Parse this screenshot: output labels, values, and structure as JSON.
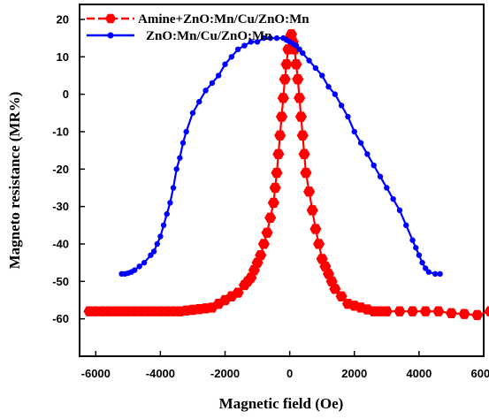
{
  "chart_data": {
    "type": "line",
    "title": "",
    "xlabel": "Magnetic field (Oe)",
    "ylabel": "Magneto resistance (MR%)",
    "xlim": [
      -6500,
      6000
    ],
    "ylim": [
      -70,
      24
    ],
    "x_ticks": [
      -6000,
      -4000,
      -2000,
      0,
      2000,
      4000,
      6000
    ],
    "x_tick_labels": [
      "-6000",
      "-4000",
      "-2000",
      "0",
      "2000",
      "4000",
      "6000"
    ],
    "y_ticks": [
      20,
      10,
      0,
      -10,
      -20,
      -30,
      -40,
      -50,
      -60
    ],
    "y_tick_labels": [
      "20",
      "10",
      "0",
      "-10",
      "-20",
      "-30",
      "-40",
      "-50",
      "-60"
    ],
    "grid": false,
    "legend_position": "top-left",
    "series": [
      {
        "name": "Amine+ZnO:Mn/Cu/ZnO:Mn",
        "color": "#ff0000",
        "marker": "hexagon",
        "x": [
          -6200,
          -6000,
          -5800,
          -5600,
          -5400,
          -5200,
          -5000,
          -4800,
          -4600,
          -4400,
          -4200,
          -4000,
          -3800,
          -3600,
          -3400,
          -3200,
          -3000,
          -2800,
          -2600,
          -2400,
          -2200,
          -2000,
          -1800,
          -1600,
          -1400,
          -1300,
          -1200,
          -1100,
          -1000,
          -900,
          -800,
          -700,
          -600,
          -500,
          -450,
          -400,
          -350,
          -300,
          -250,
          -200,
          -150,
          -100,
          -50,
          0,
          50,
          100,
          150,
          200,
          250,
          300,
          350,
          400,
          450,
          500,
          600,
          700,
          800,
          900,
          1000,
          1100,
          1200,
          1300,
          1400,
          1600,
          1800,
          2000,
          2200,
          2400,
          2600,
          2800,
          3000,
          3400,
          3800,
          4200,
          4600,
          5000,
          5400,
          5800,
          6200
        ],
        "y": [
          -58,
          -58,
          -58,
          -58,
          -58,
          -58,
          -58,
          -58,
          -58,
          -58,
          -58,
          -58,
          -58,
          -58,
          -58,
          -57.8,
          -57.6,
          -57.4,
          -57.2,
          -57,
          -56,
          -55,
          -54,
          -53,
          -51,
          -50,
          -49,
          -47,
          -45,
          -43,
          -40,
          -37,
          -33,
          -29,
          -25,
          -21,
          -16,
          -11,
          -6,
          -1,
          4,
          8,
          12,
          15,
          16,
          14,
          12,
          8,
          4,
          -1,
          -6,
          -11,
          -16,
          -21,
          -26,
          -31,
          -36,
          -40,
          -44,
          -46,
          -48,
          -50,
          -52,
          -54,
          -56,
          -56.5,
          -57,
          -57.5,
          -58,
          -58,
          -58,
          -58,
          -58,
          -58,
          -58,
          -58.5,
          -58.7,
          -59,
          -58
        ]
      },
      {
        "name": "ZnO:Mn/Cu/ZnO:Mn",
        "color": "#0000ff",
        "marker": "circle",
        "x": [
          -5200,
          -5100,
          -5000,
          -4900,
          -4800,
          -4650,
          -4500,
          -4300,
          -4200,
          -4100,
          -4000,
          -3900,
          -3800,
          -3700,
          -3600,
          -3500,
          -3400,
          -3300,
          -3200,
          -3000,
          -2800,
          -2600,
          -2400,
          -2200,
          -2000,
          -1800,
          -1600,
          -1400,
          -1200,
          -1000,
          -800,
          -600,
          -400,
          -200,
          -100,
          0,
          100,
          200,
          300,
          400,
          600,
          800,
          1000,
          1200,
          1400,
          1600,
          1800,
          2000,
          2200,
          2400,
          2600,
          2800,
          3000,
          3200,
          3400,
          3600,
          3800,
          3900,
          4000,
          4100,
          4200,
          4300,
          4500,
          4650
        ],
        "y": [
          -48,
          -48,
          -47.8,
          -47.5,
          -47,
          -46,
          -45,
          -43,
          -42,
          -40,
          -38,
          -35,
          -32,
          -29,
          -25,
          -20,
          -17,
          -13,
          -10,
          -5,
          -2,
          1,
          3,
          5,
          8,
          10,
          12,
          13,
          14,
          14,
          15,
          15,
          15,
          15,
          14.5,
          14,
          13.5,
          13,
          12,
          11,
          9,
          7,
          5,
          2,
          0,
          -3,
          -6,
          -10,
          -13,
          -16,
          -19,
          -22,
          -25,
          -28,
          -31,
          -35,
          -39,
          -41,
          -43,
          -45,
          -46.5,
          -47.5,
          -48,
          -48
        ]
      }
    ]
  }
}
